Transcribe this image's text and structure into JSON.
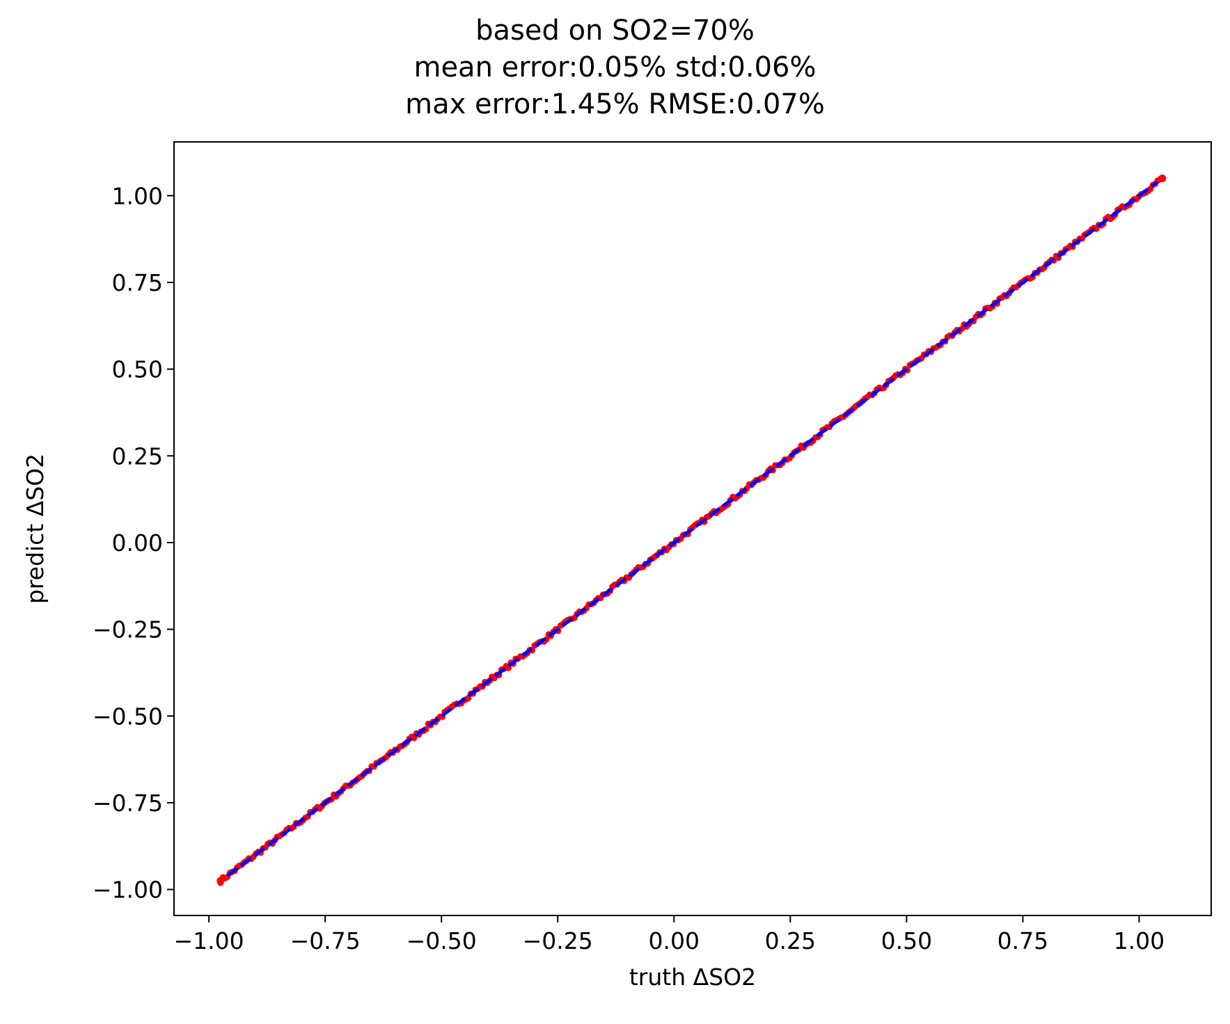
{
  "chart_data": {
    "type": "scatter",
    "title_lines": [
      "based on SO2=70%",
      "mean error:0.05% std:0.06%",
      "max error:1.45% RMSE:0.07%"
    ],
    "xlabel": "truth ΔSO2",
    "ylabel": "predict ΔSO2",
    "xlim": [
      -1.075,
      1.155
    ],
    "ylim": [
      -1.075,
      1.155
    ],
    "xticks": [
      -1.0,
      -0.75,
      -0.5,
      -0.25,
      0.0,
      0.25,
      0.5,
      0.75,
      1.0
    ],
    "xtick_labels": [
      "−1.00",
      "−0.75",
      "−0.50",
      "−0.25",
      "0.00",
      "0.25",
      "0.50",
      "0.75",
      "1.00"
    ],
    "yticks": [
      -1.0,
      -0.75,
      -0.5,
      -0.25,
      0.0,
      0.25,
      0.5,
      0.75,
      1.0
    ],
    "ytick_labels": [
      "−1.00",
      "−0.75",
      "−0.50",
      "−0.25",
      "0.00",
      "0.25",
      "0.50",
      "0.75",
      "1.00"
    ],
    "grid": false,
    "series": [
      {
        "kind": "scatter",
        "color": "#ff0000",
        "range": [
          -0.975,
          1.05
        ],
        "approx_points": 400,
        "max_abs_error": 0.0145,
        "endpoints": [
          {
            "x": -0.975,
            "y": -0.975
          },
          {
            "x": 1.05,
            "y": 1.05
          }
        ]
      },
      {
        "kind": "line",
        "style": "dashed",
        "color": "#0000ff",
        "points": [
          {
            "x": -0.96,
            "y": -0.96
          },
          {
            "x": 1.04,
            "y": 1.04
          }
        ]
      }
    ]
  }
}
